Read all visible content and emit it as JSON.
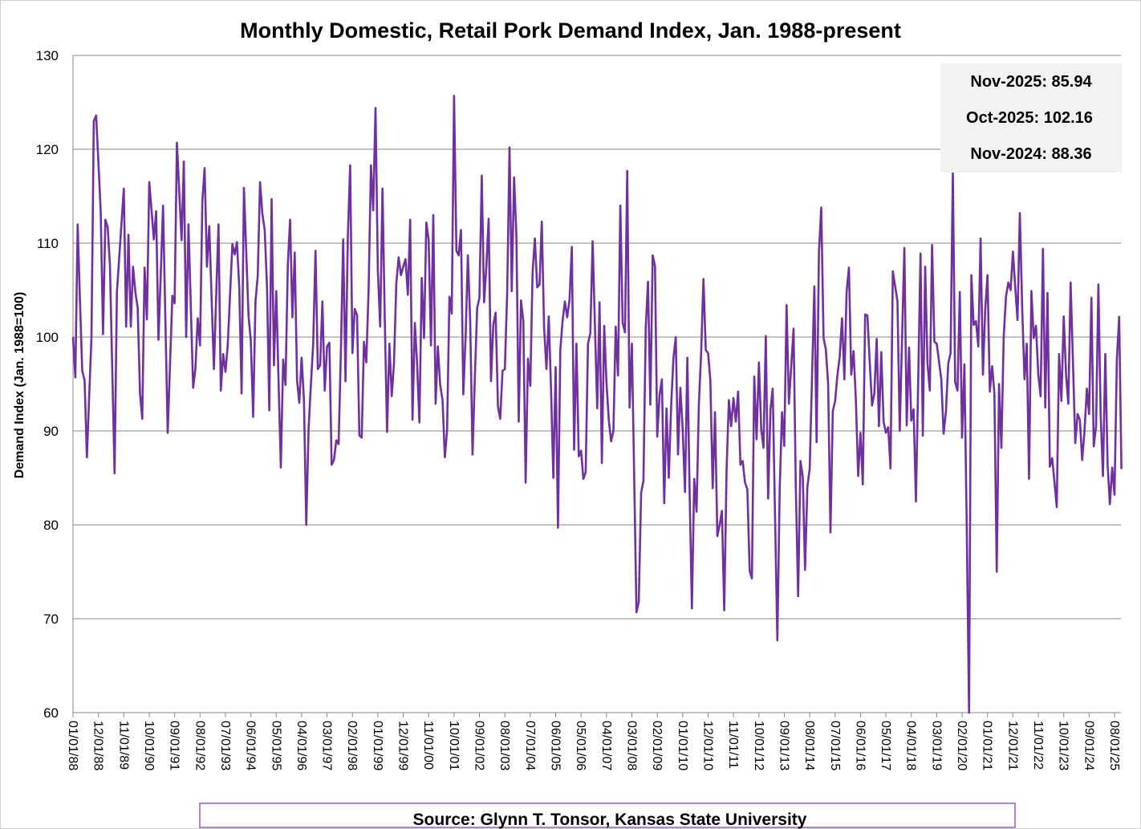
{
  "chart_data": {
    "type": "line",
    "title": "Monthly Domestic, Retail Pork Demand Index, Jan. 1988-present",
    "xlabel": "",
    "ylabel": "Demand Index (Jan. 1988=100)",
    "ylim": [
      60,
      130
    ],
    "y_ticks": [
      "60",
      "70",
      "80",
      "90",
      "100",
      "110",
      "120",
      "130"
    ],
    "grid": "horizontal",
    "x_frequency": "monthly",
    "x_range": [
      "01/01/88",
      "11/01/25"
    ],
    "x_ticks": [
      "01/01/88",
      "12/01/88",
      "11/01/89",
      "10/01/90",
      "09/01/91",
      "08/01/92",
      "07/01/93",
      "06/01/94",
      "05/01/95",
      "04/01/96",
      "03/01/97",
      "02/01/98",
      "01/01/99",
      "12/01/99",
      "11/01/00",
      "10/01/01",
      "09/01/02",
      "08/01/03",
      "07/01/04",
      "06/01/05",
      "05/01/06",
      "04/01/07",
      "03/01/08",
      "02/01/09",
      "01/01/10",
      "12/01/10",
      "11/01/11",
      "10/01/12",
      "09/01/13",
      "08/01/14",
      "07/01/15",
      "06/01/16",
      "05/01/17",
      "04/01/18",
      "03/01/19",
      "02/01/20",
      "01/01/21",
      "12/01/21",
      "11/01/22",
      "10/01/23",
      "09/01/24",
      "08/01/25"
    ],
    "series": [
      {
        "color": "#7030a0",
        "values": [
          100,
          95.7,
          112,
          104,
          96.4,
          95.4,
          87.2,
          93.6,
          100,
          123,
          123.6,
          118.5,
          113.4,
          100.3,
          112.5,
          111.7,
          107.7,
          96.6,
          85.5,
          104.8,
          108.5,
          112.1,
          115.8,
          101.1,
          110.9,
          101.1,
          107.5,
          104.8,
          103.1,
          94,
          91.3,
          107.4,
          101.9,
          116.5,
          113.5,
          110.4,
          113.4,
          99.7,
          106.8,
          114,
          101.9,
          89.8,
          97.1,
          104.4,
          103.6,
          120.7,
          115.5,
          110.3,
          118.7,
          100,
          112,
          103.3,
          94.6,
          96.6,
          102,
          99.1,
          114.5,
          118,
          107.5,
          111.8,
          104.2,
          96.6,
          104.3,
          112,
          94.3,
          98.2,
          96.3,
          99.1,
          104.5,
          109.9,
          108.8,
          110.1,
          105.3,
          94,
          115.9,
          109.1,
          102.3,
          99.6,
          91.5,
          103.8,
          106.5,
          116.5,
          113.1,
          111.4,
          105.3,
          92.2,
          114.7,
          97,
          104.9,
          95.5,
          86.1,
          97.6,
          94.9,
          107.7,
          112.5,
          102.1,
          109,
          95.4,
          93,
          97.8,
          93.3,
          80,
          90.3,
          94.8,
          99.3,
          109.2,
          96.6,
          97,
          103.8,
          94.3,
          99,
          99.4,
          86.4,
          86.9,
          89,
          88.6,
          98.7,
          110.4,
          95.3,
          110.7,
          118.3,
          98.3,
          103,
          102.3,
          89.5,
          89.3,
          99.5,
          97.3,
          105.1,
          118.3,
          113.5,
          124.4,
          107.1,
          101.1,
          115.8,
          102,
          89.9,
          99.3,
          93.7,
          97.2,
          105.7,
          108.5,
          106.6,
          107.5,
          108.3,
          104.5,
          112.5,
          91.2,
          101.5,
          97.2,
          90.9,
          106.3,
          99.9,
          112.2,
          110.4,
          99.1,
          113,
          92.9,
          99,
          94.9,
          93.3,
          87.2,
          90.1,
          104.3,
          102.5,
          125.7,
          109.2,
          108.7,
          111.4,
          93.9,
          100.1,
          108.7,
          101.7,
          87.5,
          95.7,
          103.1,
          104.2,
          117.2,
          103.7,
          107.6,
          112.6,
          95.3,
          101.3,
          102.6,
          92.6,
          91.3,
          96.4,
          96.6,
          104.8,
          120.2,
          104.9,
          117,
          110.8,
          91,
          103.9,
          101.7,
          84.5,
          97.7,
          94.8,
          106.8,
          110.5,
          105.3,
          105.6,
          112.3,
          101,
          96.6,
          102.2,
          94.3,
          85,
          96.8,
          79.7,
          98.6,
          101.7,
          103.8,
          102.1,
          104,
          109.6,
          88,
          99.3,
          87.3,
          87.9,
          84.9,
          85.6,
          99.3,
          100.4,
          110.2,
          101.4,
          92.4,
          103.7,
          86.6,
          101.2,
          95.2,
          91.2,
          88.9,
          90,
          101.1,
          95.9,
          114,
          101.5,
          100.5,
          117.7,
          92.5,
          99.3,
          85,
          70.7,
          71.8,
          83.4,
          84.7,
          101.1,
          105.9,
          92.8,
          108.7,
          107.6,
          89.4,
          93.8,
          95.5,
          82.3,
          92.4,
          85,
          92.6,
          97.8,
          100,
          87.5,
          94.6,
          90.2,
          83.5,
          97.8,
          83.8,
          71.1,
          84.9,
          81.4,
          92.9,
          98.3,
          106.2,
          98.6,
          98.3,
          95.4,
          83.9,
          92,
          78.8,
          80,
          81.5,
          70.9,
          85.8,
          93.3,
          90.5,
          93.5,
          91,
          94.2,
          86.4,
          86.8,
          84.5,
          83.8,
          75.1,
          74.3,
          95.8,
          89.1,
          97.3,
          90.2,
          88.2,
          100.1,
          82.8,
          92.3,
          94.5,
          81,
          67.7,
          83.7,
          92,
          88.4,
          103.4,
          92.9,
          96.9,
          100.9,
          84,
          72.4,
          86.8,
          85.1,
          75.2,
          84,
          86,
          95.7,
          105.4,
          88.8,
          109,
          113.8,
          99.9,
          98.7,
          95,
          79.2,
          92.1,
          93.2,
          95.9,
          97.9,
          102,
          95.5,
          104.8,
          107.4,
          96,
          98.5,
          93.2,
          85.2,
          89.8,
          84.3,
          102.4,
          102.3,
          97.4,
          92.7,
          94,
          99.8,
          90.5,
          98.4,
          91,
          89.8,
          90.4,
          86,
          107,
          105.4,
          103.8,
          90,
          99.8,
          109.5,
          90.6,
          98.9,
          91.1,
          92.3,
          82.5,
          95.7,
          108.9,
          89.5,
          107.5,
          97.2,
          94.3,
          109.8,
          99.5,
          99.3,
          97.4,
          95.5,
          89.7,
          92.1,
          97.2,
          98.3,
          117.5,
          95.2,
          94.3,
          104.8,
          89.3,
          97.1,
          80,
          60,
          106.6,
          101.3,
          101.7,
          99,
          110.5,
          96,
          102.9,
          106.6,
          94.2,
          96.9,
          94,
          75,
          95,
          88.2,
          100,
          104.3,
          105.8,
          105,
          109.1,
          105.4,
          101.8,
          113.2,
          103.2,
          95.5,
          99.3,
          84.9,
          104.9,
          99.9,
          101.2,
          96,
          93.7,
          109.4,
          92.5,
          104.7,
          86.2,
          87.1,
          84.5,
          81.9,
          98.2,
          93.2,
          102.2,
          96,
          92.9,
          105.8,
          97.3,
          88.7,
          91.8,
          91.2,
          86.9,
          90,
          94.5,
          91.8,
          104.2,
          88.36,
          90.5,
          105.6,
          91.8,
          85.2,
          98.2,
          86.4,
          82.2,
          86.1,
          83.2,
          97.6,
          102.16,
          85.94
        ]
      }
    ],
    "annotations": [
      "Nov-2025: 85.94",
      "Oct-2025: 102.16",
      "Nov-2024: 88.36"
    ],
    "source": "Source: Glynn T. Tonsor, Kansas State University"
  }
}
